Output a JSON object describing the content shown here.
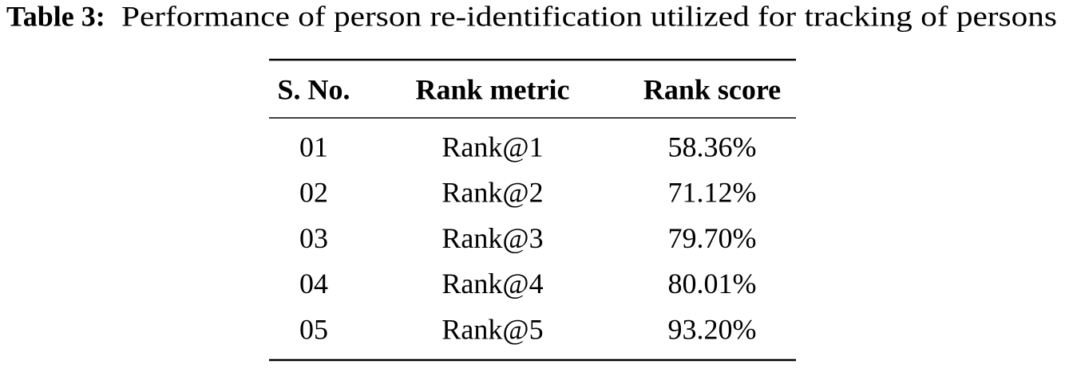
{
  "caption": {
    "label": "Table 3:",
    "text": "Performance of person re-identification utilized for tracking of persons"
  },
  "table": {
    "header": [
      "S. No.",
      "Rank metric",
      "Rank score"
    ],
    "rows": [
      [
        "01",
        "Rank@1",
        "58.36%"
      ],
      [
        "02",
        "Rank@2",
        "71.12%"
      ],
      [
        "03",
        "Rank@3",
        "79.70%"
      ],
      [
        "04",
        "Rank@4",
        "80.01%"
      ],
      [
        "05",
        "Rank@5",
        "93.20%"
      ]
    ]
  }
}
